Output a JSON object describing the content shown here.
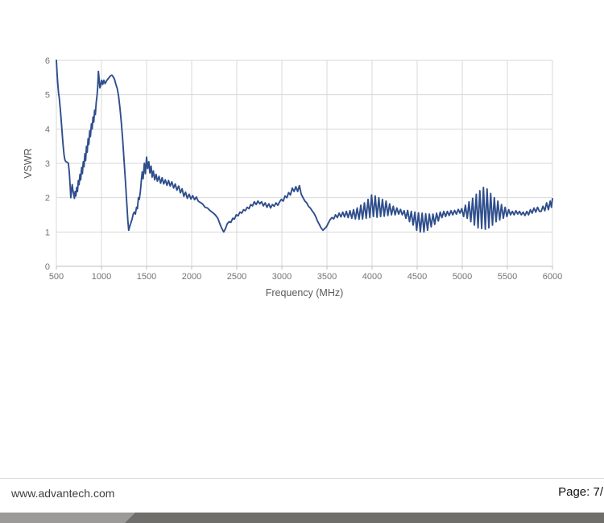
{
  "chart_data": {
    "type": "line",
    "title": "",
    "xlabel": "Frequency (MHz)",
    "ylabel": "VSWR",
    "xlim": [
      500,
      6000
    ],
    "ylim": [
      0,
      6
    ],
    "x_ticks": [
      500,
      1000,
      1500,
      2000,
      2500,
      3000,
      3500,
      4000,
      4500,
      5000,
      5500,
      6000
    ],
    "y_ticks": [
      0,
      1,
      2,
      3,
      4,
      5,
      6
    ],
    "grid": true,
    "legend": "none",
    "colors": {
      "grid": "#d9d9d9",
      "axis": "#bfbfbf",
      "tick_label": "#737373",
      "axis_title": "#595959"
    },
    "series": [
      {
        "name": "VSWR",
        "color": "#2F4E8C",
        "points": [
          [
            500,
            6.0
          ],
          [
            508,
            5.62
          ],
          [
            516,
            5.3
          ],
          [
            524,
            5.05
          ],
          [
            532,
            4.9
          ],
          [
            545,
            4.55
          ],
          [
            558,
            4.1
          ],
          [
            572,
            3.6
          ],
          [
            585,
            3.25
          ],
          [
            595,
            3.1
          ],
          [
            605,
            3.05
          ],
          [
            620,
            3.03
          ],
          [
            633,
            3.0
          ],
          [
            643,
            2.75
          ],
          [
            653,
            2.35
          ],
          [
            660,
            2.0
          ],
          [
            668,
            2.2
          ],
          [
            676,
            2.38
          ],
          [
            684,
            2.2
          ],
          [
            692,
            2.1
          ],
          [
            700,
            1.98
          ],
          [
            708,
            2.18
          ],
          [
            716,
            2.05
          ],
          [
            726,
            2.3
          ],
          [
            734,
            2.18
          ],
          [
            744,
            2.5
          ],
          [
            752,
            2.38
          ],
          [
            762,
            2.68
          ],
          [
            770,
            2.52
          ],
          [
            780,
            2.88
          ],
          [
            788,
            2.7
          ],
          [
            798,
            3.05
          ],
          [
            806,
            2.9
          ],
          [
            816,
            3.28
          ],
          [
            824,
            3.08
          ],
          [
            834,
            3.5
          ],
          [
            842,
            3.32
          ],
          [
            852,
            3.72
          ],
          [
            860,
            3.55
          ],
          [
            870,
            3.95
          ],
          [
            878,
            3.78
          ],
          [
            888,
            4.15
          ],
          [
            896,
            4.0
          ],
          [
            906,
            4.35
          ],
          [
            914,
            4.2
          ],
          [
            924,
            4.55
          ],
          [
            932,
            4.42
          ],
          [
            942,
            4.78
          ],
          [
            950,
            4.95
          ],
          [
            958,
            5.2
          ],
          [
            966,
            5.68
          ],
          [
            974,
            5.45
          ],
          [
            982,
            5.2
          ],
          [
            992,
            5.28
          ],
          [
            1002,
            5.42
          ],
          [
            1014,
            5.3
          ],
          [
            1026,
            5.42
          ],
          [
            1040,
            5.32
          ],
          [
            1055,
            5.4
          ],
          [
            1070,
            5.45
          ],
          [
            1085,
            5.5
          ],
          [
            1100,
            5.55
          ],
          [
            1115,
            5.57
          ],
          [
            1130,
            5.52
          ],
          [
            1145,
            5.45
          ],
          [
            1160,
            5.3
          ],
          [
            1175,
            5.18
          ],
          [
            1190,
            4.95
          ],
          [
            1205,
            4.6
          ],
          [
            1220,
            4.2
          ],
          [
            1235,
            3.7
          ],
          [
            1250,
            3.1
          ],
          [
            1265,
            2.5
          ],
          [
            1280,
            1.85
          ],
          [
            1292,
            1.35
          ],
          [
            1302,
            1.05
          ],
          [
            1315,
            1.18
          ],
          [
            1328,
            1.28
          ],
          [
            1340,
            1.38
          ],
          [
            1352,
            1.52
          ],
          [
            1364,
            1.58
          ],
          [
            1376,
            1.52
          ],
          [
            1388,
            1.72
          ],
          [
            1398,
            1.68
          ],
          [
            1410,
            2.0
          ],
          [
            1420,
            1.95
          ],
          [
            1432,
            2.2
          ],
          [
            1442,
            2.5
          ],
          [
            1452,
            2.75
          ],
          [
            1462,
            2.55
          ],
          [
            1475,
            3.0
          ],
          [
            1487,
            2.7
          ],
          [
            1500,
            3.18
          ],
          [
            1512,
            2.85
          ],
          [
            1525,
            3.05
          ],
          [
            1537,
            2.72
          ],
          [
            1550,
            2.92
          ],
          [
            1562,
            2.6
          ],
          [
            1575,
            2.78
          ],
          [
            1590,
            2.52
          ],
          [
            1605,
            2.68
          ],
          [
            1620,
            2.48
          ],
          [
            1638,
            2.62
          ],
          [
            1655,
            2.42
          ],
          [
            1672,
            2.58
          ],
          [
            1690,
            2.4
          ],
          [
            1708,
            2.52
          ],
          [
            1726,
            2.36
          ],
          [
            1744,
            2.5
          ],
          [
            1762,
            2.34
          ],
          [
            1780,
            2.46
          ],
          [
            1800,
            2.28
          ],
          [
            1818,
            2.4
          ],
          [
            1836,
            2.22
          ],
          [
            1856,
            2.34
          ],
          [
            1875,
            2.14
          ],
          [
            1894,
            2.26
          ],
          [
            1913,
            2.04
          ],
          [
            1932,
            2.16
          ],
          [
            1952,
            1.98
          ],
          [
            1972,
            2.1
          ],
          [
            1992,
            1.96
          ],
          [
            2012,
            2.06
          ],
          [
            2032,
            1.94
          ],
          [
            2052,
            2.02
          ],
          [
            2072,
            1.9
          ],
          [
            2095,
            1.86
          ],
          [
            2120,
            1.82
          ],
          [
            2148,
            1.72
          ],
          [
            2175,
            1.7
          ],
          [
            2205,
            1.62
          ],
          [
            2235,
            1.56
          ],
          [
            2262,
            1.5
          ],
          [
            2290,
            1.4
          ],
          [
            2315,
            1.22
          ],
          [
            2335,
            1.1
          ],
          [
            2355,
            1.0
          ],
          [
            2375,
            1.1
          ],
          [
            2395,
            1.24
          ],
          [
            2415,
            1.3
          ],
          [
            2435,
            1.28
          ],
          [
            2455,
            1.4
          ],
          [
            2475,
            1.38
          ],
          [
            2495,
            1.5
          ],
          [
            2515,
            1.47
          ],
          [
            2535,
            1.58
          ],
          [
            2555,
            1.55
          ],
          [
            2575,
            1.65
          ],
          [
            2595,
            1.62
          ],
          [
            2615,
            1.72
          ],
          [
            2635,
            1.68
          ],
          [
            2655,
            1.8
          ],
          [
            2675,
            1.76
          ],
          [
            2695,
            1.88
          ],
          [
            2715,
            1.8
          ],
          [
            2735,
            1.9
          ],
          [
            2755,
            1.82
          ],
          [
            2775,
            1.88
          ],
          [
            2795,
            1.76
          ],
          [
            2815,
            1.85
          ],
          [
            2835,
            1.72
          ],
          [
            2855,
            1.82
          ],
          [
            2875,
            1.7
          ],
          [
            2895,
            1.8
          ],
          [
            2915,
            1.75
          ],
          [
            2935,
            1.85
          ],
          [
            2955,
            1.78
          ],
          [
            2975,
            1.88
          ],
          [
            2995,
            1.95
          ],
          [
            3015,
            1.9
          ],
          [
            3035,
            2.05
          ],
          [
            3055,
            2.0
          ],
          [
            3075,
            2.15
          ],
          [
            3095,
            2.08
          ],
          [
            3115,
            2.28
          ],
          [
            3135,
            2.18
          ],
          [
            3155,
            2.32
          ],
          [
            3175,
            2.18
          ],
          [
            3195,
            2.35
          ],
          [
            3215,
            2.1
          ],
          [
            3235,
            2.0
          ],
          [
            3255,
            1.9
          ],
          [
            3275,
            1.85
          ],
          [
            3295,
            1.75
          ],
          [
            3315,
            1.7
          ],
          [
            3335,
            1.62
          ],
          [
            3355,
            1.55
          ],
          [
            3375,
            1.45
          ],
          [
            3395,
            1.32
          ],
          [
            3415,
            1.22
          ],
          [
            3435,
            1.12
          ],
          [
            3455,
            1.05
          ],
          [
            3475,
            1.1
          ],
          [
            3495,
            1.15
          ],
          [
            3515,
            1.26
          ],
          [
            3535,
            1.36
          ],
          [
            3555,
            1.42
          ],
          [
            3575,
            1.38
          ],
          [
            3595,
            1.5
          ],
          [
            3615,
            1.42
          ],
          [
            3635,
            1.55
          ],
          [
            3655,
            1.44
          ],
          [
            3675,
            1.58
          ],
          [
            3695,
            1.44
          ],
          [
            3715,
            1.6
          ],
          [
            3735,
            1.42
          ],
          [
            3755,
            1.62
          ],
          [
            3775,
            1.4
          ],
          [
            3795,
            1.65
          ],
          [
            3815,
            1.38
          ],
          [
            3835,
            1.7
          ],
          [
            3855,
            1.37
          ],
          [
            3875,
            1.78
          ],
          [
            3895,
            1.38
          ],
          [
            3915,
            1.85
          ],
          [
            3935,
            1.4
          ],
          [
            3955,
            1.95
          ],
          [
            3975,
            1.42
          ],
          [
            3995,
            2.08
          ],
          [
            4015,
            1.45
          ],
          [
            4035,
            2.05
          ],
          [
            4055,
            1.43
          ],
          [
            4075,
            2.0
          ],
          [
            4095,
            1.45
          ],
          [
            4115,
            1.95
          ],
          [
            4135,
            1.46
          ],
          [
            4155,
            1.9
          ],
          [
            4175,
            1.48
          ],
          [
            4195,
            1.82
          ],
          [
            4215,
            1.5
          ],
          [
            4235,
            1.75
          ],
          [
            4255,
            1.5
          ],
          [
            4275,
            1.7
          ],
          [
            4295,
            1.52
          ],
          [
            4315,
            1.66
          ],
          [
            4335,
            1.5
          ],
          [
            4355,
            1.62
          ],
          [
            4375,
            1.4
          ],
          [
            4395,
            1.63
          ],
          [
            4415,
            1.3
          ],
          [
            4435,
            1.6
          ],
          [
            4455,
            1.2
          ],
          [
            4475,
            1.58
          ],
          [
            4495,
            1.05
          ],
          [
            4515,
            1.56
          ],
          [
            4535,
            1.0
          ],
          [
            4555,
            1.55
          ],
          [
            4575,
            1.0
          ],
          [
            4595,
            1.53
          ],
          [
            4615,
            1.05
          ],
          [
            4635,
            1.52
          ],
          [
            4655,
            1.15
          ],
          [
            4675,
            1.52
          ],
          [
            4695,
            1.22
          ],
          [
            4715,
            1.55
          ],
          [
            4735,
            1.32
          ],
          [
            4755,
            1.58
          ],
          [
            4775,
            1.42
          ],
          [
            4795,
            1.6
          ],
          [
            4815,
            1.45
          ],
          [
            4835,
            1.6
          ],
          [
            4855,
            1.48
          ],
          [
            4875,
            1.62
          ],
          [
            4895,
            1.5
          ],
          [
            4915,
            1.63
          ],
          [
            4935,
            1.52
          ],
          [
            4955,
            1.66
          ],
          [
            4975,
            1.55
          ],
          [
            4995,
            1.68
          ],
          [
            5015,
            1.45
          ],
          [
            5035,
            1.78
          ],
          [
            5055,
            1.4
          ],
          [
            5075,
            1.88
          ],
          [
            5095,
            1.3
          ],
          [
            5115,
            1.98
          ],
          [
            5135,
            1.2
          ],
          [
            5155,
            2.1
          ],
          [
            5175,
            1.12
          ],
          [
            5195,
            2.2
          ],
          [
            5215,
            1.1
          ],
          [
            5235,
            2.3
          ],
          [
            5255,
            1.08
          ],
          [
            5275,
            2.25
          ],
          [
            5295,
            1.12
          ],
          [
            5315,
            2.12
          ],
          [
            5335,
            1.2
          ],
          [
            5355,
            2.0
          ],
          [
            5375,
            1.3
          ],
          [
            5395,
            1.9
          ],
          [
            5415,
            1.35
          ],
          [
            5435,
            1.8
          ],
          [
            5455,
            1.4
          ],
          [
            5475,
            1.72
          ],
          [
            5495,
            1.45
          ],
          [
            5515,
            1.65
          ],
          [
            5535,
            1.5
          ],
          [
            5555,
            1.6
          ],
          [
            5575,
            1.5
          ],
          [
            5595,
            1.62
          ],
          [
            5615,
            1.52
          ],
          [
            5635,
            1.6
          ],
          [
            5655,
            1.5
          ],
          [
            5675,
            1.58
          ],
          [
            5695,
            1.48
          ],
          [
            5715,
            1.6
          ],
          [
            5735,
            1.5
          ],
          [
            5755,
            1.65
          ],
          [
            5775,
            1.55
          ],
          [
            5795,
            1.7
          ],
          [
            5815,
            1.58
          ],
          [
            5835,
            1.72
          ],
          [
            5855,
            1.6
          ],
          [
            5875,
            1.6
          ],
          [
            5895,
            1.75
          ],
          [
            5915,
            1.62
          ],
          [
            5935,
            1.85
          ],
          [
            5955,
            1.65
          ],
          [
            5975,
            1.9
          ],
          [
            5988,
            1.72
          ],
          [
            6000,
            1.97
          ]
        ]
      }
    ]
  },
  "footer": {
    "website": "www.advantech.com",
    "page_label": "Page: 7/",
    "divider_color": "#d9d9d9",
    "bar_light_color": "#9b9a98",
    "bar_dark_color": "#6f6e6a"
  }
}
